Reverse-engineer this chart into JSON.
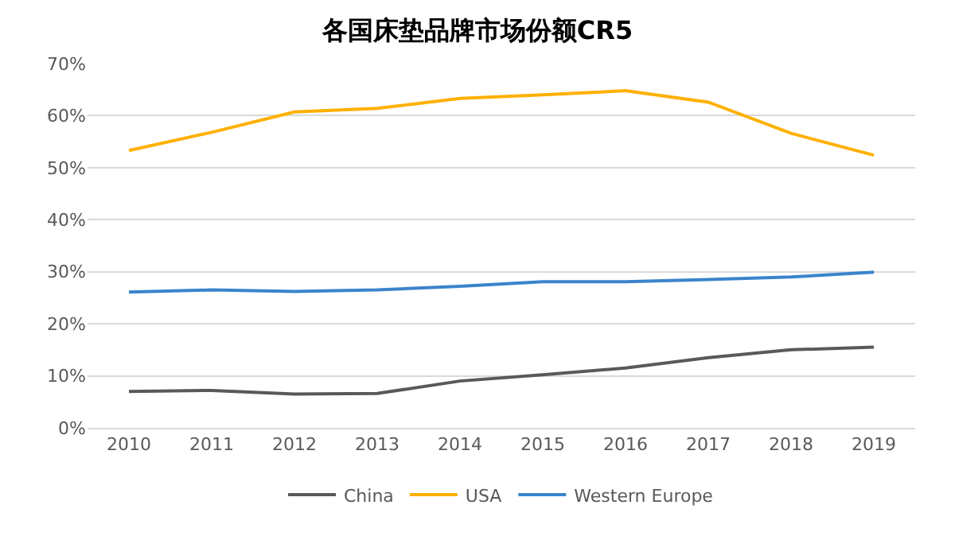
{
  "chart_data": {
    "type": "line",
    "title": "各国床垫品牌市场份额CR5",
    "categories": [
      "2010",
      "2011",
      "2012",
      "2013",
      "2014",
      "2015",
      "2016",
      "2017",
      "2018",
      "2019"
    ],
    "series": [
      {
        "name": "China",
        "color": "#595959",
        "values": [
          7.0,
          7.2,
          6.5,
          6.6,
          9.0,
          10.2,
          11.5,
          13.5,
          15.0,
          15.5
        ]
      },
      {
        "name": "USA",
        "color": "#ffb000",
        "values": [
          53.3,
          56.8,
          60.7,
          61.4,
          63.3,
          64.0,
          64.8,
          62.6,
          56.6,
          52.4
        ]
      },
      {
        "name": "Western Europe",
        "color": "#3a84cc",
        "values": [
          26.1,
          26.5,
          26.2,
          26.5,
          27.2,
          28.1,
          28.1,
          28.5,
          29.0,
          29.9
        ]
      }
    ],
    "ylim": [
      0,
      70
    ],
    "yticks": [
      {
        "value": 0,
        "label": "0%"
      },
      {
        "value": 10,
        "label": "10%"
      },
      {
        "value": 20,
        "label": "20%"
      },
      {
        "value": 30,
        "label": "30%"
      },
      {
        "value": 40,
        "label": "40%"
      },
      {
        "value": 50,
        "label": "50%"
      },
      {
        "value": 60,
        "label": "60%"
      },
      {
        "value": 70,
        "label": "70%"
      }
    ],
    "grid": "y",
    "legend": "bottom",
    "marker": "none",
    "line_style": "solid"
  }
}
